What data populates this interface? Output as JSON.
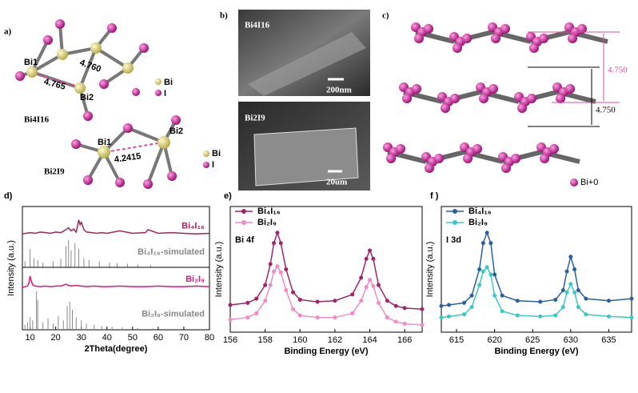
{
  "panel_a": {
    "label": "a)",
    "bi4i16": {
      "title": "Bi4I16",
      "atoms": [
        "Bi1",
        "Bi2"
      ],
      "distances": [
        "4.765",
        "4.760"
      ],
      "legend": [
        "Bi",
        "I"
      ]
    },
    "bi2i9": {
      "title": "Bi2I9",
      "atoms": [
        "Bi1",
        "Bi2"
      ],
      "distances": [
        "4.2415"
      ],
      "legend": [
        "Bi",
        "I"
      ]
    }
  },
  "panel_b": {
    "label": "b)",
    "images": [
      {
        "title": "Bi4I16",
        "scale_bar": "200nm"
      },
      {
        "title": "Bi2I9",
        "scale_bar": "20um"
      }
    ]
  },
  "panel_c": {
    "label": "c)",
    "distances": [
      "4.750",
      "4.750"
    ],
    "legend": "Bi+0"
  },
  "chart_data": [
    {
      "type": "line",
      "panel_label": "d)",
      "ylabel": "Intensity (a.u.)",
      "xlim": [
        7,
        80
      ],
      "ylim": [
        0,
        100
      ],
      "legend": "inline",
      "markers": false,
      "series": [
        {
          "name": "Bi₄I₁₆",
          "color": "#a0245e",
          "style": "line",
          "x": [
            7,
            10,
            12,
            14,
            16,
            18,
            20,
            22,
            24,
            25,
            26,
            27,
            28,
            29,
            29.5,
            30,
            31,
            32,
            34,
            36,
            38,
            40,
            45,
            50,
            55,
            56,
            60,
            65,
            70,
            75,
            80
          ],
          "values": [
            55,
            57,
            56,
            58,
            57,
            56,
            58,
            57,
            62,
            65,
            60,
            63,
            58,
            78,
            70,
            74,
            62,
            58,
            57,
            56,
            57,
            56,
            60,
            56,
            57,
            62,
            56,
            57,
            56,
            55,
            56
          ]
        },
        {
          "name": "Bi₄I₁₆-simulated",
          "color": "#888888",
          "style": "stick",
          "x": [
            8,
            10,
            11.5,
            13,
            15,
            19,
            22,
            24,
            25,
            26,
            27.5,
            29,
            31,
            33,
            37,
            41,
            44,
            48,
            52,
            57
          ],
          "values": [
            10,
            30,
            15,
            12,
            8,
            10,
            14,
            35,
            45,
            28,
            40,
            30,
            15,
            12,
            10,
            8,
            7,
            6,
            5,
            4
          ]
        }
      ]
    },
    {
      "type": "line",
      "xlabel": "2Theta(degree)",
      "xlim": [
        7,
        80
      ],
      "ylim": [
        0,
        100
      ],
      "xticks": [
        10,
        20,
        30,
        40,
        50,
        60,
        70,
        80
      ],
      "legend": "inline",
      "markers": false,
      "series": [
        {
          "name": "Bi₂I₉",
          "color": "#e0157a",
          "style": "line",
          "x": [
            7,
            8,
            9,
            9.5,
            10,
            10.5,
            11,
            12,
            14,
            16,
            18,
            20,
            22,
            24,
            25,
            26,
            28,
            30,
            32,
            35,
            38,
            40,
            45,
            50,
            55,
            60,
            65,
            70,
            75,
            80
          ],
          "values": [
            68,
            69,
            70,
            74,
            86,
            78,
            72,
            70,
            69,
            70,
            69,
            70,
            70,
            73,
            71,
            70,
            71,
            70,
            69,
            70,
            69,
            69,
            70,
            69,
            69,
            70,
            69,
            69,
            70,
            69
          ]
        },
        {
          "name": "Bi₂I₉-simulated",
          "color": "#888888",
          "style": "stick",
          "x": [
            8,
            9,
            10,
            11,
            12.5,
            13,
            15,
            17,
            19,
            21,
            23,
            24.5,
            25.5,
            26.5,
            28,
            30,
            32,
            35,
            38,
            42,
            46,
            52,
            58
          ],
          "values": [
            8,
            12,
            20,
            15,
            62,
            48,
            12,
            18,
            10,
            22,
            15,
            38,
            45,
            32,
            20,
            15,
            10,
            8,
            6,
            5,
            4,
            3,
            2
          ]
        }
      ]
    },
    {
      "type": "line",
      "panel_label": "e)",
      "annotation": "Bi 4f",
      "xlabel": "Binding Energy (eV)",
      "ylabel": "Intensity (a.u.)",
      "xlim": [
        156,
        167
      ],
      "ylim": [
        0,
        120
      ],
      "xticks": [
        156,
        158,
        160,
        162,
        164,
        166
      ],
      "legend": "upper left",
      "markers": true,
      "series": [
        {
          "name": "Bi₄I₁₆",
          "color": "#a0246a",
          "style": "line",
          "x": [
            156,
            157,
            157.5,
            158,
            158.3,
            158.5,
            158.7,
            158.9,
            159.2,
            159.6,
            160,
            161,
            162,
            163,
            163.5,
            163.8,
            164,
            164.2,
            164.5,
            165,
            165.5,
            166,
            167
          ],
          "values": [
            26,
            28,
            32,
            45,
            65,
            85,
            95,
            85,
            60,
            38,
            31,
            29,
            30,
            36,
            52,
            70,
            78,
            70,
            45,
            30,
            25,
            23,
            22
          ]
        },
        {
          "name": "Bi₂I₉",
          "color": "#f08ac8",
          "style": "line",
          "x": [
            156,
            157,
            157.5,
            158,
            158.3,
            158.5,
            158.7,
            158.9,
            159.2,
            159.6,
            160,
            161,
            162,
            163,
            163.5,
            163.8,
            164,
            164.2,
            164.5,
            165,
            165.5,
            166,
            167
          ],
          "values": [
            12,
            14,
            18,
            30,
            45,
            58,
            63,
            57,
            40,
            22,
            16,
            14,
            14,
            18,
            30,
            43,
            50,
            44,
            28,
            14,
            10,
            8,
            7
          ]
        }
      ]
    },
    {
      "type": "line",
      "panel_label": "f )",
      "annotation": "I 3d",
      "xlabel": "Binding Energy (eV)",
      "ylabel": "Intensity (a.u.)",
      "xlim": [
        613,
        638
      ],
      "ylim": [
        0,
        120
      ],
      "xticks": [
        615,
        620,
        625,
        630,
        635
      ],
      "legend": "upper left",
      "markers": true,
      "series": [
        {
          "name": "Bi₄I₁₆",
          "color": "#2b5f9e",
          "style": "line",
          "x": [
            613,
            614,
            616,
            617,
            618,
            618.5,
            619,
            619.5,
            620,
            621,
            623,
            626,
            628,
            629,
            629.5,
            630,
            630.5,
            631,
            632,
            635,
            638
          ],
          "values": [
            25,
            26,
            28,
            35,
            60,
            85,
            95,
            85,
            55,
            35,
            30,
            29,
            31,
            40,
            58,
            72,
            60,
            40,
            32,
            30,
            32
          ]
        },
        {
          "name": "Bi₂I₉",
          "color": "#3cc7c7",
          "style": "line",
          "x": [
            613,
            614,
            616,
            617,
            618,
            618.5,
            619,
            619.5,
            620,
            621,
            623,
            626,
            628,
            629,
            629.5,
            630,
            630.5,
            631,
            632,
            635,
            638
          ],
          "values": [
            14,
            15,
            17,
            24,
            45,
            58,
            62,
            55,
            35,
            20,
            16,
            15,
            16,
            24,
            38,
            46,
            38,
            24,
            17,
            15,
            14
          ]
        }
      ]
    }
  ]
}
